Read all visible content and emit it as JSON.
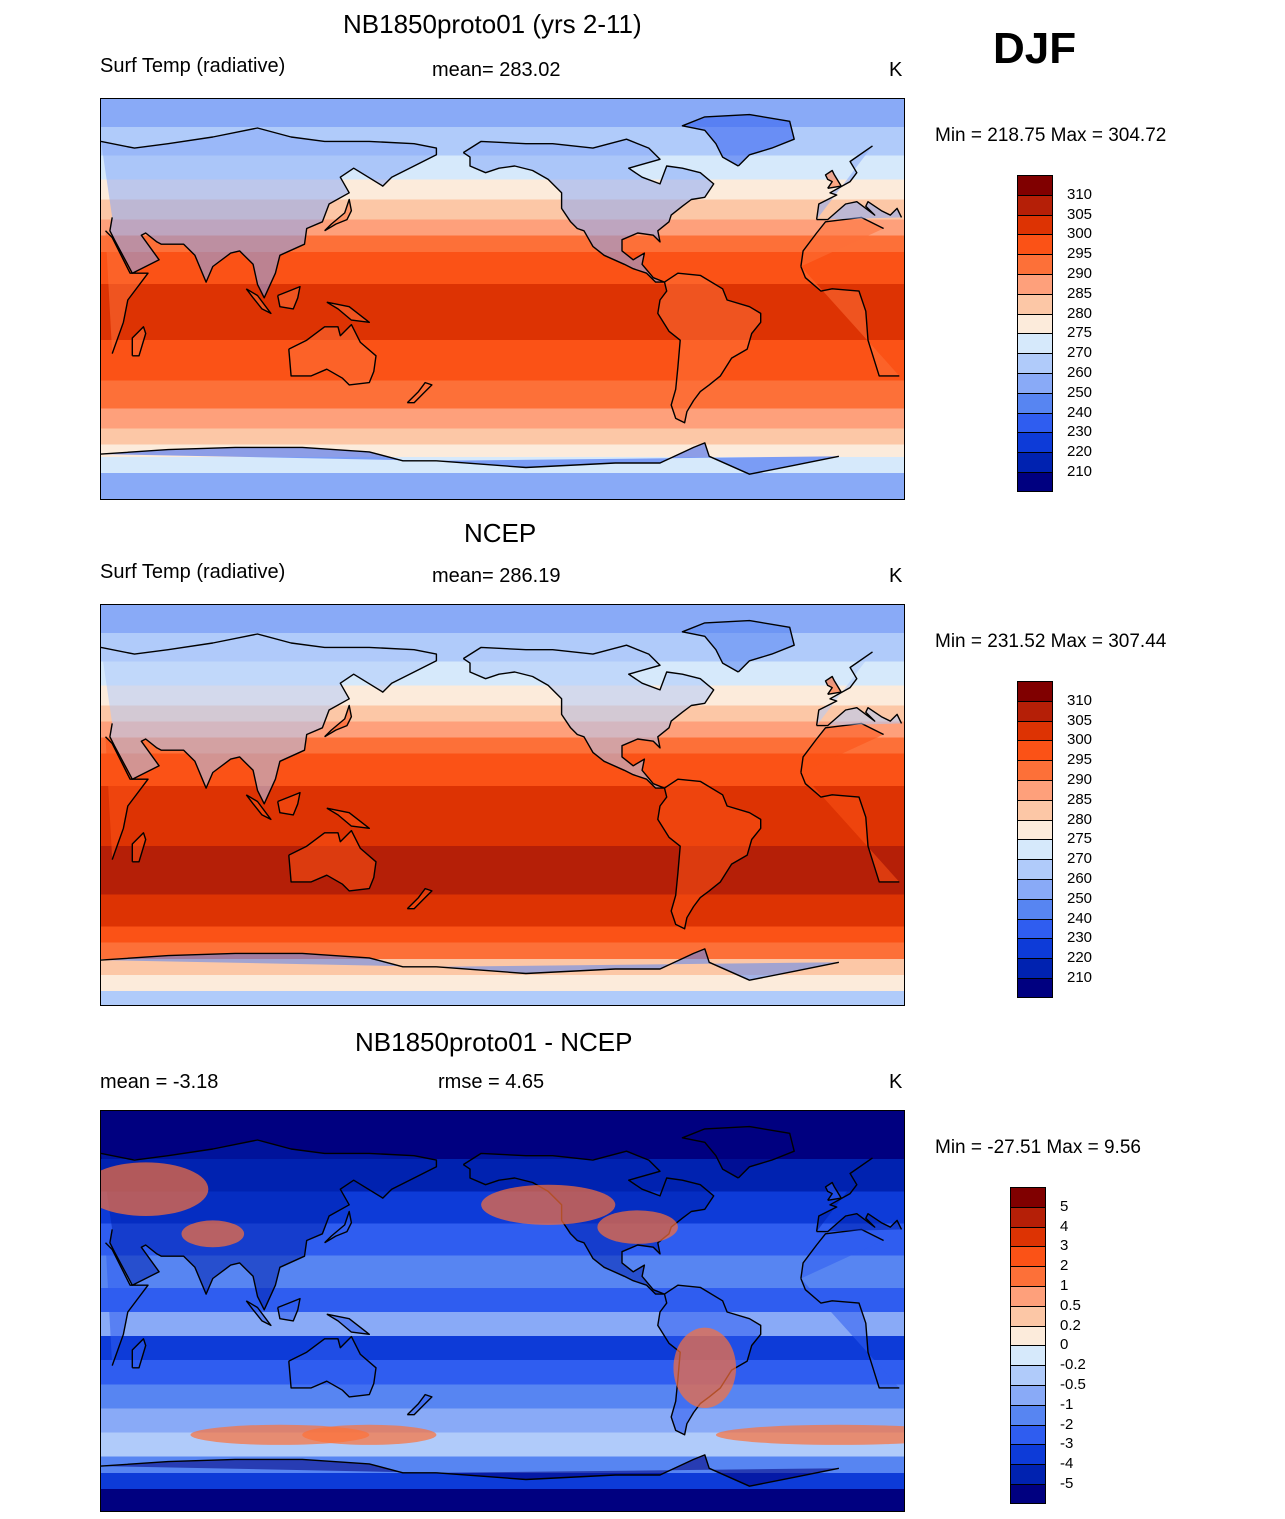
{
  "season": "DJF",
  "panels": [
    {
      "id": "model",
      "title": "NB1850proto01 (yrs 2-11)",
      "left_label": "Surf Temp (radiative)",
      "center_label": "mean= 283.02",
      "units": "K",
      "minmax": "Min = 218.75 Max = 304.72",
      "colorbar": {
        "labels": [
          "310",
          "305",
          "300",
          "295",
          "290",
          "285",
          "280",
          "275",
          "270",
          "260",
          "250",
          "240",
          "230",
          "220",
          "210"
        ],
        "colors": [
          "#800000",
          "#b51f07",
          "#dd3303",
          "#fb5216",
          "#fd7038",
          "#fea07b",
          "#fcc7a6",
          "#fcebdb",
          "#d6e9fb",
          "#b0cbfa",
          "#89aaf7",
          "#5785f2",
          "#2f5df0",
          "#0d3bd8",
          "#0022b0",
          "#000080"
        ]
      },
      "palette": [
        "#0022b0",
        "#2f5df0",
        "#5785f2",
        "#89aaf7",
        "#b0cbfa",
        "#d6e9fb",
        "#fcebdb",
        "#fcc7a6",
        "#fea07b",
        "#fd7038",
        "#fb5216",
        "#dd3303"
      ]
    },
    {
      "id": "obs",
      "title": "NCEP",
      "left_label": "Surf Temp (radiative)",
      "center_label": "mean= 286.19",
      "units": "K",
      "minmax": "Min = 231.52 Max = 307.44",
      "colorbar": {
        "labels": [
          "310",
          "305",
          "300",
          "295",
          "290",
          "285",
          "280",
          "275",
          "270",
          "260",
          "250",
          "240",
          "230",
          "220",
          "210"
        ],
        "colors": [
          "#800000",
          "#b51f07",
          "#dd3303",
          "#fb5216",
          "#fd7038",
          "#fea07b",
          "#fcc7a6",
          "#fcebdb",
          "#d6e9fb",
          "#b0cbfa",
          "#89aaf7",
          "#5785f2",
          "#2f5df0",
          "#0d3bd8",
          "#0022b0",
          "#000080"
        ]
      },
      "palette": [
        "#2f5df0",
        "#5785f2",
        "#89aaf7",
        "#b0cbfa",
        "#d6e9fb",
        "#fcebdb",
        "#fcc7a6",
        "#fea07b",
        "#fd7038",
        "#fb5216",
        "#dd3303",
        "#b51f07"
      ]
    },
    {
      "id": "diff",
      "title": "NB1850proto01 - NCEP",
      "left_label": "mean =  -3.18",
      "center_label": "rmse =   4.65",
      "units": "K",
      "minmax": "Min = -27.51 Max =   9.56",
      "colorbar": {
        "labels": [
          "5",
          "4",
          "3",
          "2",
          "1",
          "0.5",
          "0.2",
          "0",
          "-0.2",
          "-0.5",
          "-1",
          "-2",
          "-3",
          "-4",
          "-5"
        ],
        "colors": [
          "#800000",
          "#b51f07",
          "#dd3303",
          "#fb5216",
          "#fd7038",
          "#fea07b",
          "#fcc7a6",
          "#fcebdb",
          "#d6e9fb",
          "#b0cbfa",
          "#89aaf7",
          "#5785f2",
          "#2f5df0",
          "#0d3bd8",
          "#0022b0",
          "#000080"
        ]
      },
      "palette": [
        "#000080",
        "#0022b0",
        "#0d3bd8",
        "#2f5df0",
        "#5785f2",
        "#89aaf7",
        "#b0cbfa",
        "#d6e9fb",
        "#fcebdb",
        "#fcc7a6",
        "#fea07b",
        "#fd7038",
        "#dd3303",
        "#b51f07"
      ]
    }
  ]
}
